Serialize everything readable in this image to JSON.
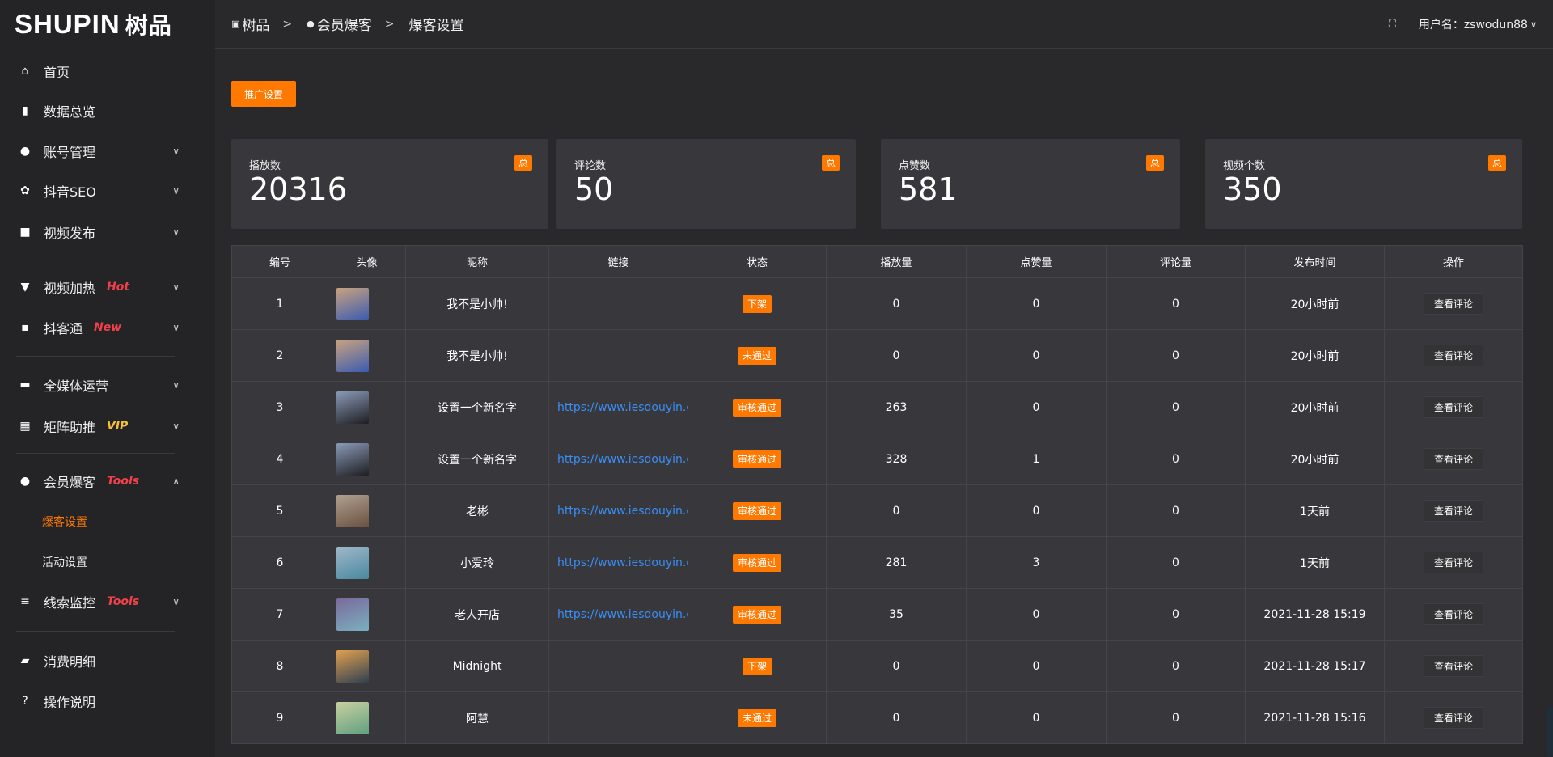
{
  "logo": {
    "text": "SHUPIN",
    "cn": "树品"
  },
  "breadcrumb": [
    "树品",
    "会员爆客",
    "爆客设置"
  ],
  "header": {
    "user_label": "用户名：zswodun88"
  },
  "sidebar": {
    "items": [
      {
        "label": "首页",
        "icon": "home-icon",
        "glyph": "⌂"
      },
      {
        "label": "数据总览",
        "icon": "bar-chart-icon",
        "glyph": "▮"
      },
      {
        "label": "账号管理",
        "icon": "user-icon",
        "glyph": "●",
        "chev": "∨"
      },
      {
        "label": "抖音SEO",
        "icon": "gear-icon",
        "glyph": "✿",
        "chev": "∨"
      },
      {
        "label": "视频发布",
        "icon": "camera-icon",
        "glyph": "■",
        "chev": "∨"
      },
      {
        "label": "视频加热",
        "icon": "billboard-icon",
        "glyph": "▼",
        "tag": "Hot",
        "tag_color": "#f0404a",
        "chev": "∨"
      },
      {
        "label": "抖客通",
        "icon": "comment-icon",
        "glyph": "▪",
        "tag": "New",
        "tag_color": "#f0404a",
        "chev": "∨"
      },
      {
        "label": "全媒体运营",
        "icon": "monitor-icon",
        "glyph": "▬",
        "chev": "∨"
      },
      {
        "label": "矩阵助推",
        "icon": "grid-icon",
        "glyph": "▦",
        "tag": "VIP",
        "tag_color": "#f5c040",
        "chev": "∨"
      },
      {
        "label": "会员爆客",
        "icon": "user-icon",
        "glyph": "●",
        "tag": "Tools",
        "tag_color": "#f0404a",
        "chev": "∧"
      },
      {
        "label": "爆客设置",
        "sub": true,
        "active": true
      },
      {
        "label": "活动设置",
        "sub": true
      },
      {
        "label": "线索监控",
        "icon": "sliders-icon",
        "glyph": "≡",
        "tag": "Tools",
        "tag_color": "#f0404a",
        "chev": "∨"
      },
      {
        "label": "消费明细",
        "icon": "wallet-icon",
        "glyph": "▰"
      },
      {
        "label": "操作说明",
        "icon": "help-icon",
        "glyph": "?"
      }
    ]
  },
  "promo_button": "推广设置",
  "stats": [
    {
      "label": "播放数",
      "value": "20316",
      "badge": "总"
    },
    {
      "label": "评论数",
      "value": "50",
      "badge": "总"
    },
    {
      "label": "点赞数",
      "value": "581",
      "badge": "总"
    },
    {
      "label": "视频个数",
      "value": "350",
      "badge": "总"
    }
  ],
  "table": {
    "columns": [
      "编号",
      "头像",
      "昵称",
      "链接",
      "状态",
      "播放量",
      "点赞量",
      "评论量",
      "发布时间",
      "操作"
    ],
    "rows": [
      {
        "id": "1",
        "nick": "我不是小帅!",
        "link": "",
        "status": "下架",
        "plays": "0",
        "likes": "0",
        "comments": "0",
        "time": "20小时前",
        "action": "查看评论",
        "avatar": "#c9a27f,#3a5bb0"
      },
      {
        "id": "2",
        "nick": "我不是小帅!",
        "link": "",
        "status": "未通过",
        "plays": "0",
        "likes": "0",
        "comments": "0",
        "time": "20小时前",
        "action": "查看评论",
        "avatar": "#c9a27f,#3a5bb0"
      },
      {
        "id": "3",
        "nick": "设置一个新名字",
        "link": "https://www.iesdouyin.c",
        "status": "审核通过",
        "plays": "263",
        "likes": "0",
        "comments": "0",
        "time": "20小时前",
        "action": "查看评论",
        "avatar": "#8a9ab8,#1e1e22"
      },
      {
        "id": "4",
        "nick": "设置一个新名字",
        "link": "https://www.iesdouyin.c",
        "status": "审核通过",
        "plays": "328",
        "likes": "1",
        "comments": "0",
        "time": "20小时前",
        "action": "查看评论",
        "avatar": "#8a9ab8,#1e1e22"
      },
      {
        "id": "5",
        "nick": "老彬",
        "link": "https://www.iesdouyin.c",
        "status": "审核通过",
        "plays": "0",
        "likes": "0",
        "comments": "0",
        "time": "1天前",
        "action": "查看评论",
        "avatar": "#b0a090,#6a5040"
      },
      {
        "id": "6",
        "nick": "小爱玲",
        "link": "https://www.iesdouyin.c",
        "status": "审核通过",
        "plays": "281",
        "likes": "3",
        "comments": "0",
        "time": "1天前",
        "action": "查看评论",
        "avatar": "#9fb8c8,#4a88a0"
      },
      {
        "id": "7",
        "nick": "老人开店",
        "link": "https://www.iesdouyin.c",
        "status": "审核通过",
        "plays": "35",
        "likes": "0",
        "comments": "0",
        "time": "2021-11-28 15:19",
        "action": "查看评论",
        "avatar": "#7a6a9a,#7ab0c0"
      },
      {
        "id": "8",
        "nick": "Midnight",
        "link": "",
        "status": "下架",
        "plays": "0",
        "likes": "0",
        "comments": "0",
        "time": "2021-11-28 15:17",
        "action": "查看评论",
        "avatar": "#e0a050,#304050"
      },
      {
        "id": "9",
        "nick": "阿慧",
        "link": "",
        "status": "未通过",
        "plays": "0",
        "likes": "0",
        "comments": "0",
        "time": "2021-11-28 15:16",
        "action": "查看评论",
        "avatar": "#c8d0a0,#60a080"
      }
    ]
  },
  "colors": {
    "accent": "#ff7800",
    "link": "#3a8ef6",
    "bg": "#29292c",
    "sidebar": "#242427",
    "card": "#38383c"
  }
}
